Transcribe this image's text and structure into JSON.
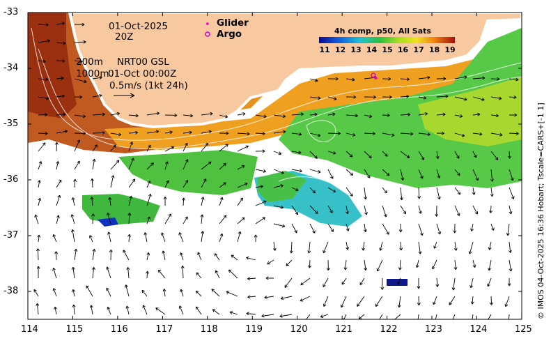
{
  "map": {
    "date": "01-Oct-2025",
    "time": "20Z",
    "depth_labels": [
      "200m",
      "1000m"
    ],
    "model_label": "NRT00 GSL",
    "model_time": "01-Oct 00:00Z",
    "scale_label": "0.5m/s (1kt 24h)",
    "legend": {
      "glider": "Glider",
      "argo": "Argo"
    },
    "colorbar": {
      "title": "4h comp, p50, All Sats",
      "ticks": [
        "11",
        "12",
        "13",
        "14",
        "15",
        "16",
        "17",
        "18",
        "19"
      ]
    },
    "credit": "© IMOS 04-Oct-2025 16:36 Hobart; Tscale=CARS+[-1 1]",
    "x_ticks": [
      "114",
      "115",
      "116",
      "117",
      "118",
      "119",
      "120",
      "121",
      "122",
      "123",
      "124",
      "125"
    ],
    "y_ticks": [
      "-33",
      "-34",
      "-35",
      "-36",
      "-37",
      "-38"
    ],
    "colors": {
      "land": "#f8c8a0",
      "warm": "#b84a10",
      "mid": "#f0a020",
      "green": "#44c040",
      "cool": "#40c0d0",
      "cold": "#101890"
    }
  }
}
